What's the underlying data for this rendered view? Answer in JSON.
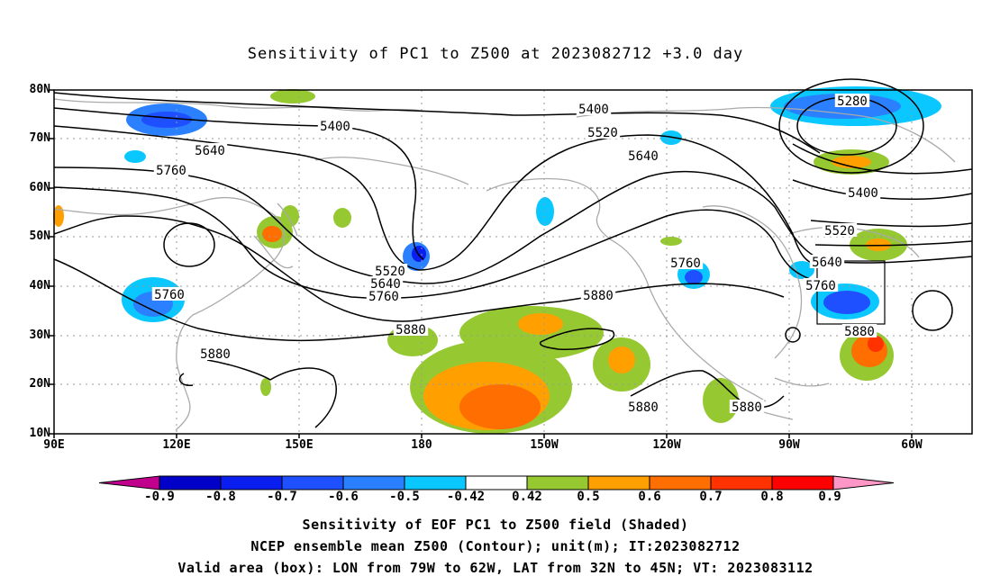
{
  "title": "Sensitivity of PC1 to Z500 at 2023082712 +3.0 day",
  "lat_labels": [
    "80N",
    "70N",
    "60N",
    "50N",
    "40N",
    "30N",
    "20N",
    "10N"
  ],
  "lon_labels": [
    "90E",
    "120E",
    "150E",
    "180",
    "150W",
    "120W",
    "90W",
    "60W"
  ],
  "contour_labels": [
    "5400",
    "5400",
    "5520",
    "5640",
    "5640",
    "5760",
    "5760",
    "5520",
    "5640",
    "5760",
    "5880",
    "5760",
    "5280",
    "5400",
    "5520",
    "5640",
    "5760",
    "5880",
    "5880",
    "5880",
    "5880",
    "5880"
  ],
  "colorbar": {
    "labels": [
      "-0.9",
      "-0.8",
      "-0.7",
      "-0.6",
      "-0.5",
      "-0.42",
      "0.42",
      "0.5",
      "0.6",
      "0.7",
      "0.8",
      "0.9"
    ],
    "colors": [
      "#c0008c",
      "#0000c8",
      "#0a1ef0",
      "#1e50ff",
      "#2a80ff",
      "#0ac8ff",
      "#ffffff",
      "#96c832",
      "#ffa000",
      "#ff6e00",
      "#ff3200",
      "#ff0000",
      "#ff96c8"
    ]
  },
  "captions": {
    "line1": "Sensitivity of EOF PC1 to Z500 field (Shaded)",
    "line2": "NCEP ensemble mean Z500 (Contour); unit(m); IT:2023082712",
    "line3": "Valid area (box): LON from 79W to 62W, LAT from 32N to 45N; VT: 2023083112"
  }
}
